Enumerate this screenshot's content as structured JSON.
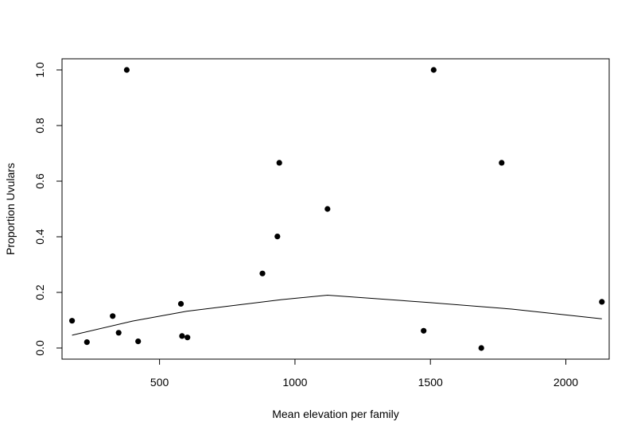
{
  "chart_data": {
    "type": "scatter",
    "title": "",
    "xlabel": "Mean elevation per family",
    "ylabel": "Proportion Uvulars",
    "xlim": [
      140,
      2160
    ],
    "ylim": [
      -0.04,
      1.04
    ],
    "xticks": [
      500,
      1000,
      1500,
      2000
    ],
    "xtick_labels": [
      "500",
      "1000",
      "1500",
      "2000"
    ],
    "yticks": [
      0.0,
      0.2,
      0.4,
      0.6,
      0.8,
      1.0
    ],
    "ytick_labels": [
      "0.0",
      "0.2",
      "0.4",
      "0.6",
      "0.8",
      "1.0"
    ],
    "grid": false,
    "colors": {
      "points": "#000000",
      "line": "#000000",
      "axes": "#000000"
    },
    "points": [
      {
        "x": 177,
        "y": 0.098
      },
      {
        "x": 232,
        "y": 0.021
      },
      {
        "x": 327,
        "y": 0.115
      },
      {
        "x": 349,
        "y": 0.055
      },
      {
        "x": 379,
        "y": 1.0
      },
      {
        "x": 421,
        "y": 0.024
      },
      {
        "x": 579,
        "y": 0.159
      },
      {
        "x": 583,
        "y": 0.043
      },
      {
        "x": 603,
        "y": 0.038
      },
      {
        "x": 880,
        "y": 0.268
      },
      {
        "x": 935,
        "y": 0.401
      },
      {
        "x": 942,
        "y": 0.666
      },
      {
        "x": 1120,
        "y": 0.5
      },
      {
        "x": 1475,
        "y": 0.062
      },
      {
        "x": 1512,
        "y": 1.0
      },
      {
        "x": 1688,
        "y": 0.0
      },
      {
        "x": 1763,
        "y": 0.666
      },
      {
        "x": 2133,
        "y": 0.166
      }
    ],
    "smooth_line": [
      {
        "x": 177,
        "y": 0.046
      },
      {
        "x": 400,
        "y": 0.097
      },
      {
        "x": 600,
        "y": 0.132
      },
      {
        "x": 800,
        "y": 0.156
      },
      {
        "x": 950,
        "y": 0.174
      },
      {
        "x": 1120,
        "y": 0.19
      },
      {
        "x": 1500,
        "y": 0.163
      },
      {
        "x": 1800,
        "y": 0.14
      },
      {
        "x": 2133,
        "y": 0.105
      }
    ]
  }
}
